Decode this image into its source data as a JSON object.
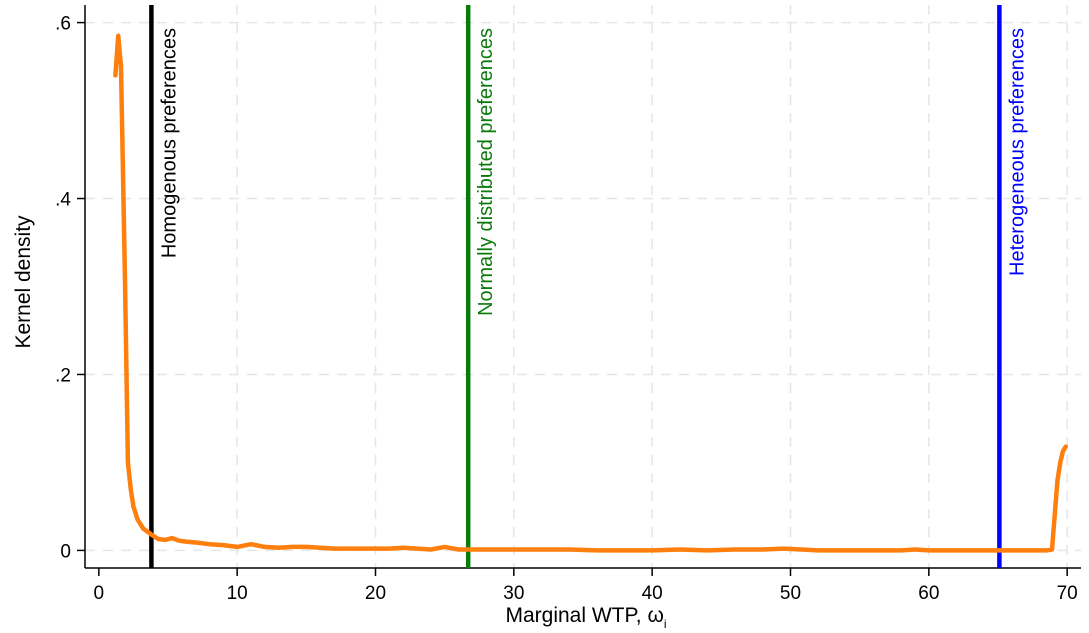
{
  "chart_data": {
    "type": "line",
    "xlabel": "Marginal  WTP, ω",
    "xlabel_subscript": "i",
    "ylabel": "Kernel density",
    "xlim": [
      -1,
      71
    ],
    "ylim": [
      -0.02,
      0.62
    ],
    "x_ticks": [
      0,
      10,
      20,
      30,
      40,
      50,
      60,
      70
    ],
    "x_tick_labels": [
      "0",
      "10",
      "20",
      "30",
      "40",
      "50",
      "60",
      "70"
    ],
    "y_ticks": [
      0,
      0.2,
      0.4,
      0.6
    ],
    "y_tick_labels": [
      "0",
      ".2",
      ".4",
      ".6"
    ],
    "grid": true,
    "series": [
      {
        "color": "#ff7f0e",
        "x": [
          1.2,
          1.4,
          1.6,
          1.9,
          2.1,
          2.3,
          2.5,
          2.8,
          3.2,
          3.8,
          4.3,
          4.8,
          5.3,
          5.8,
          6.3,
          7,
          8,
          9,
          10,
          11,
          12,
          13,
          14,
          15,
          16,
          17,
          18,
          19,
          20,
          21,
          22,
          23,
          24,
          25,
          26,
          27,
          28,
          29,
          30,
          32,
          34,
          36,
          38,
          40,
          42,
          44,
          46,
          48,
          49.5,
          52,
          54,
          56,
          58,
          59,
          60,
          62,
          64,
          66,
          68,
          68.5,
          68.9,
          69.1,
          69.3,
          69.5,
          69.7,
          69.9
        ],
        "y": [
          0.54,
          0.585,
          0.55,
          0.3,
          0.1,
          0.07,
          0.05,
          0.035,
          0.025,
          0.018,
          0.013,
          0.012,
          0.014,
          0.011,
          0.01,
          0.009,
          0.007,
          0.006,
          0.004,
          0.007,
          0.004,
          0.003,
          0.004,
          0.004,
          0.003,
          0.002,
          0.002,
          0.002,
          0.002,
          0.002,
          0.003,
          0.002,
          0.001,
          0.004,
          0.001,
          0.001,
          0.001,
          0.001,
          0.001,
          0.001,
          0.001,
          0,
          0,
          0,
          0.001,
          0,
          0.001,
          0.001,
          0.002,
          0,
          0,
          0,
          0,
          0.001,
          0,
          0,
          0,
          0,
          0,
          0,
          0.001,
          0.04,
          0.08,
          0.1,
          0.113,
          0.118
        ]
      }
    ],
    "vertical_lines": [
      {
        "x": 3.8,
        "label": "Homogenous preferences",
        "color": "#000000"
      },
      {
        "x": 26.7,
        "label": "Normally distributed preferences",
        "color": "#0a7a0a"
      },
      {
        "x": 65.1,
        "label": "Heterogeneous preferences",
        "color": "#0000ff"
      }
    ]
  }
}
